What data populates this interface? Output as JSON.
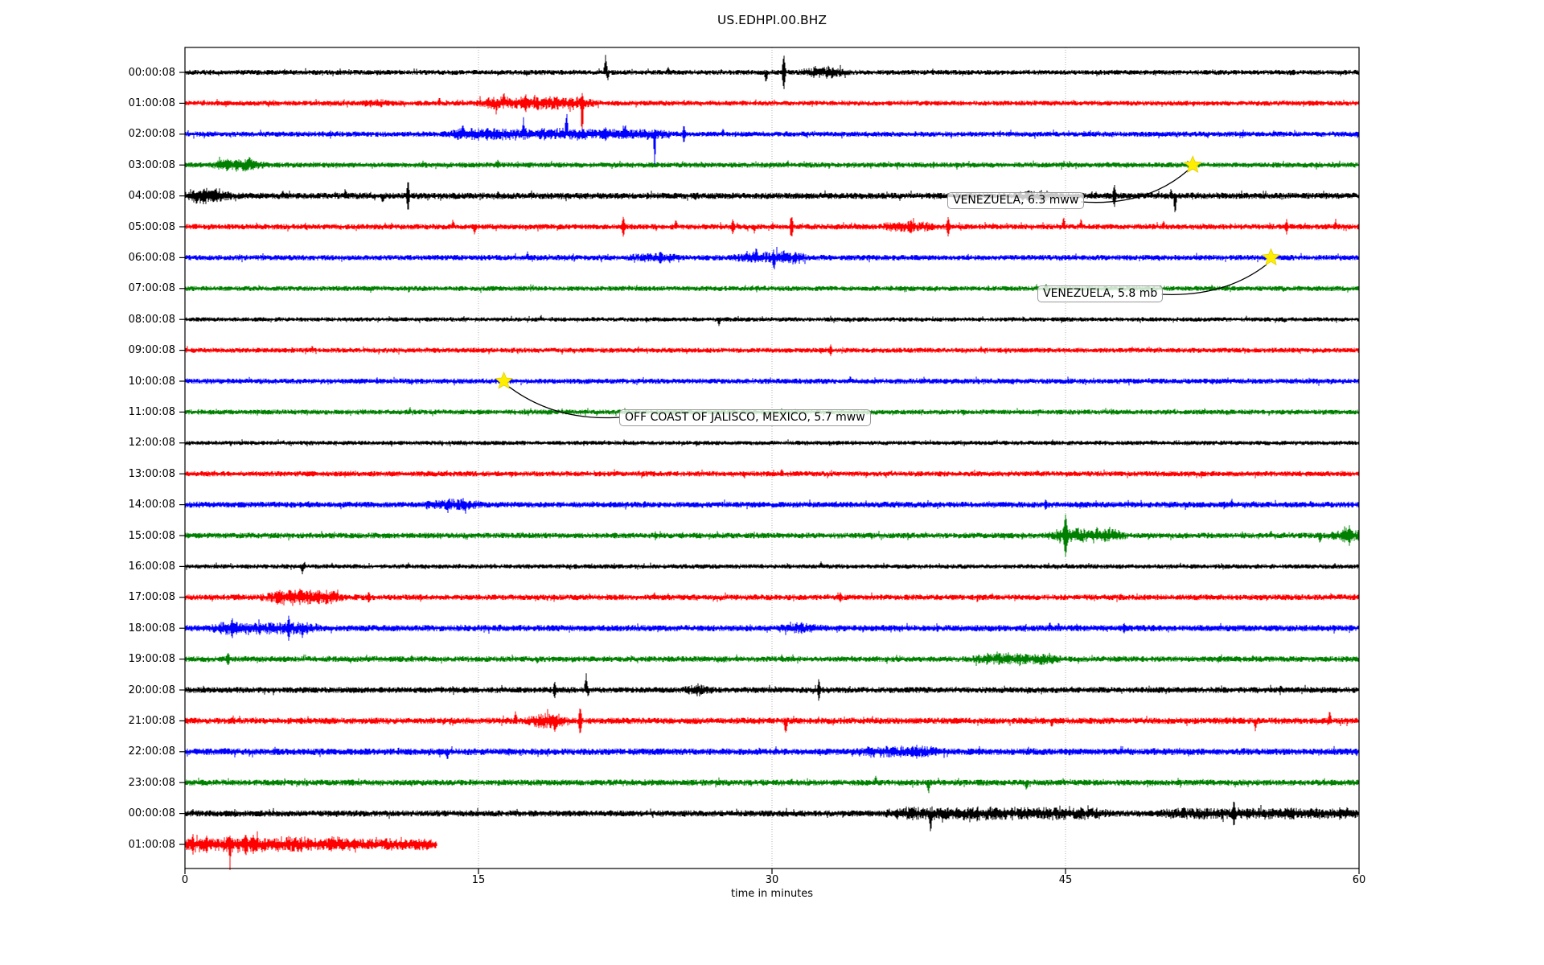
{
  "figure": {
    "title": "US.EDHPI.00.BHZ",
    "xlabel": "time in minutes"
  },
  "colors": {
    "grid": "#b0b0b0",
    "axis": "#000000",
    "star_fill": "#ffee00",
    "annotation_border": "#999999",
    "trace_cycle": [
      "#000000",
      "#ff0000",
      "#0000ff",
      "#008000"
    ]
  },
  "chart_data": {
    "type": "line",
    "subtype": "helicorder-seismogram-day-plot",
    "title": "US.EDHPI.00.BHZ",
    "xlabel": "time in minutes",
    "x_range_minutes": [
      0,
      60
    ],
    "x_ticks": [
      0,
      15,
      30,
      45,
      60
    ],
    "gridline_minutes": [
      15,
      30,
      45
    ],
    "minutes_per_row": 60,
    "row_order": "top-to-bottom",
    "rows": [
      {
        "label": "00:00:08",
        "color": "#000000",
        "base": 3.2,
        "end": 60,
        "bursts": [
          [
            31.8,
            33.6,
            6
          ]
        ],
        "spikes": [
          [
            21.5,
            22,
            1
          ],
          [
            21.6,
            10,
            -1
          ],
          [
            24.7,
            8,
            1
          ],
          [
            29.7,
            13,
            -1
          ],
          [
            30.6,
            24,
            0
          ]
        ]
      },
      {
        "label": "01:00:08",
        "color": "#ff0000",
        "base": 3.2,
        "end": 60,
        "bursts": [
          [
            9.3,
            10.4,
            3
          ],
          [
            15.2,
            20.8,
            6
          ]
        ],
        "spikes": [
          [
            13.0,
            8,
            1
          ],
          [
            16.3,
            16,
            1
          ],
          [
            17.4,
            12,
            0
          ],
          [
            18.6,
            8,
            1
          ],
          [
            20.3,
            46,
            -1,
            0.1
          ],
          [
            20.3,
            14,
            1
          ]
        ]
      },
      {
        "label": "02:00:08",
        "color": "#0000ff",
        "base": 3.4,
        "end": 60,
        "bursts": [
          [
            13.5,
            24.5,
            5
          ]
        ],
        "spikes": [
          [
            14.2,
            12,
            1
          ],
          [
            17.3,
            20,
            1
          ],
          [
            19.5,
            26,
            1
          ],
          [
            21.5,
            10,
            0
          ],
          [
            22.5,
            12,
            1
          ],
          [
            24.0,
            36,
            -1,
            0.1
          ],
          [
            25.5,
            10,
            0
          ],
          [
            27.5,
            8,
            1
          ]
        ]
      },
      {
        "label": "03:00:08",
        "color": "#008000",
        "base": 3.4,
        "end": 60,
        "bursts": [
          [
            1.7,
            3.7,
            7
          ]
        ],
        "spikes": [
          [
            2.1,
            8,
            1
          ],
          [
            3.3,
            12,
            1
          ],
          [
            16.0,
            6,
            1
          ],
          [
            30.8,
            6,
            1
          ]
        ]
      },
      {
        "label": "04:00:08",
        "color": "#000000",
        "base": 4.0,
        "end": 60,
        "bursts": [
          [
            0,
            2.1,
            7
          ],
          [
            42.8,
            44.2,
            4
          ]
        ],
        "spikes": [
          [
            0.6,
            11,
            -1
          ],
          [
            0.95,
            10,
            1
          ],
          [
            1.5,
            9,
            -1
          ],
          [
            5.0,
            7,
            1
          ],
          [
            8.2,
            9,
            1
          ],
          [
            10.1,
            10,
            -1
          ],
          [
            11.4,
            19,
            0
          ],
          [
            16.0,
            6,
            1
          ],
          [
            47.5,
            14,
            0
          ],
          [
            50.6,
            25,
            -1,
            0.1
          ],
          [
            50.4,
            9,
            1
          ]
        ]
      },
      {
        "label": "05:00:08",
        "color": "#ff0000",
        "base": 3.5,
        "end": 60,
        "bursts": [
          [
            35.8,
            38.2,
            4
          ]
        ],
        "spikes": [
          [
            13.7,
            9,
            1
          ],
          [
            14.8,
            10,
            -1
          ],
          [
            22.4,
            12,
            0
          ],
          [
            25.1,
            10,
            1
          ],
          [
            28.0,
            10,
            0
          ],
          [
            29.1,
            8,
            -1
          ],
          [
            31.0,
            16,
            0
          ],
          [
            37.1,
            10,
            0
          ],
          [
            39.0,
            12,
            0
          ],
          [
            44.9,
            12,
            1
          ],
          [
            45.8,
            10,
            1
          ],
          [
            50.0,
            8,
            1
          ],
          [
            56.3,
            10,
            0
          ],
          [
            58.8,
            9,
            1
          ]
        ]
      },
      {
        "label": "06:00:08",
        "color": "#0000ff",
        "base": 3.5,
        "end": 60,
        "bursts": [
          [
            23.0,
            25.0,
            3
          ],
          [
            28.4,
            31.6,
            6
          ]
        ],
        "spikes": [
          [
            17.5,
            8,
            1
          ],
          [
            24.3,
            10,
            0
          ],
          [
            29.2,
            12,
            1
          ],
          [
            30.1,
            16,
            -1
          ],
          [
            30.6,
            10,
            1
          ],
          [
            31.2,
            9,
            0
          ]
        ]
      },
      {
        "label": "07:00:08",
        "color": "#008000",
        "base": 3.2,
        "end": 60,
        "bursts": [],
        "spikes": [
          [
            44.0,
            6,
            1
          ]
        ]
      },
      {
        "label": "08:00:08",
        "color": "#000000",
        "base": 2.8,
        "end": 60,
        "bursts": [],
        "spikes": [
          [
            18.2,
            5,
            1
          ],
          [
            27.3,
            8,
            -1
          ]
        ]
      },
      {
        "label": "09:00:08",
        "color": "#ff0000",
        "base": 3.2,
        "end": 60,
        "bursts": [],
        "spikes": [
          [
            6.5,
            6,
            1
          ],
          [
            33.0,
            6,
            0
          ]
        ]
      },
      {
        "label": "10:00:08",
        "color": "#0000ff",
        "base": 3.4,
        "end": 60,
        "bursts": [],
        "spikes": [
          [
            34.0,
            6,
            1
          ]
        ]
      },
      {
        "label": "11:00:08",
        "color": "#008000",
        "base": 3.2,
        "end": 60,
        "bursts": [],
        "spikes": [
          [
            11.5,
            6,
            1
          ]
        ]
      },
      {
        "label": "12:00:08",
        "color": "#000000",
        "base": 2.8,
        "end": 60,
        "bursts": [],
        "spikes": []
      },
      {
        "label": "13:00:08",
        "color": "#ff0000",
        "base": 3.4,
        "end": 60,
        "bursts": [],
        "spikes": [
          [
            30.5,
            6,
            1
          ]
        ]
      },
      {
        "label": "14:00:08",
        "color": "#0000ff",
        "base": 3.8,
        "end": 60,
        "bursts": [
          [
            12.5,
            14.8,
            5
          ]
        ],
        "spikes": [
          [
            13.5,
            8,
            1
          ],
          [
            44.0,
            7,
            0
          ],
          [
            53.5,
            7,
            1
          ]
        ]
      },
      {
        "label": "15:00:08",
        "color": "#008000",
        "base": 3.6,
        "end": 60,
        "bursts": [
          [
            44.3,
            47.8,
            7
          ],
          [
            58.9,
            60,
            7
          ]
        ],
        "spikes": [
          [
            45.0,
            24,
            0,
            0.15
          ],
          [
            46.6,
            13,
            1
          ],
          [
            47.4,
            10,
            1
          ],
          [
            55.5,
            6,
            1
          ],
          [
            58.0,
            11,
            -1
          ],
          [
            59.5,
            12,
            0
          ]
        ]
      },
      {
        "label": "16:00:08",
        "color": "#000000",
        "base": 2.9,
        "end": 60,
        "bursts": [],
        "spikes": [
          [
            6.0,
            11,
            -1
          ],
          [
            6.1,
            6,
            1
          ],
          [
            32.5,
            6,
            1
          ]
        ]
      },
      {
        "label": "17:00:08",
        "color": "#ff0000",
        "base": 3.6,
        "end": 60,
        "bursts": [
          [
            4.2,
            7.8,
            7
          ]
        ],
        "spikes": [
          [
            4.8,
            9,
            0
          ],
          [
            5.9,
            12,
            1
          ],
          [
            7.6,
            10,
            1
          ],
          [
            9.4,
            8,
            0
          ],
          [
            24.0,
            6,
            1
          ],
          [
            33.5,
            7,
            0
          ]
        ]
      },
      {
        "label": "18:00:08",
        "color": "#0000ff",
        "base": 4.0,
        "end": 60,
        "bursts": [
          [
            1.5,
            6.5,
            5
          ],
          [
            30.8,
            32.2,
            4
          ]
        ],
        "spikes": [
          [
            2.4,
            13,
            0
          ],
          [
            5.3,
            15,
            0
          ],
          [
            6.0,
            11,
            -1
          ],
          [
            31.5,
            8,
            1
          ],
          [
            44.2,
            7,
            1
          ],
          [
            48.0,
            7,
            0
          ]
        ]
      },
      {
        "label": "19:00:08",
        "color": "#008000",
        "base": 3.6,
        "end": 60,
        "bursts": [
          [
            40.5,
            44.5,
            5
          ]
        ],
        "spikes": [
          [
            2.2,
            10,
            0
          ],
          [
            30.5,
            6,
            1
          ],
          [
            41.5,
            9,
            1
          ],
          [
            43.0,
            8,
            1
          ]
        ]
      },
      {
        "label": "20:00:08",
        "color": "#000000",
        "base": 3.8,
        "end": 60,
        "bursts": [
          [
            25.8,
            26.6,
            5
          ]
        ],
        "spikes": [
          [
            18.9,
            11,
            0
          ],
          [
            20.5,
            19,
            1
          ],
          [
            20.6,
            8,
            -1
          ],
          [
            32.4,
            13,
            0
          ],
          [
            56.0,
            7,
            1
          ]
        ]
      },
      {
        "label": "21:00:08",
        "color": "#ff0000",
        "base": 4.0,
        "end": 60,
        "bursts": [
          [
            17.7,
            19.4,
            7
          ]
        ],
        "spikes": [
          [
            16.9,
            11,
            1
          ],
          [
            18.9,
            15,
            -1
          ],
          [
            20.2,
            20,
            0
          ],
          [
            30.7,
            18,
            -1
          ],
          [
            44.3,
            9,
            -1
          ],
          [
            54.7,
            11,
            -1
          ],
          [
            58.5,
            12,
            1
          ]
        ]
      },
      {
        "label": "22:00:08",
        "color": "#0000ff",
        "base": 4.2,
        "end": 60,
        "bursts": [
          [
            34.5,
            38.5,
            4
          ]
        ],
        "spikes": [
          [
            13.4,
            11,
            -1
          ],
          [
            30.2,
            7,
            1
          ],
          [
            37.4,
            8,
            0
          ],
          [
            40.6,
            7,
            1
          ],
          [
            49.5,
            6,
            1
          ]
        ]
      },
      {
        "label": "23:00:08",
        "color": "#008000",
        "base": 3.8,
        "end": 60,
        "bursts": [],
        "spikes": [
          [
            31.0,
            6,
            1
          ],
          [
            35.3,
            8,
            1
          ],
          [
            38.0,
            13,
            -1
          ],
          [
            43.0,
            11,
            -1
          ]
        ]
      },
      {
        "label": "00:00:08",
        "color": "#000000",
        "base": 4.0,
        "end": 60,
        "bursts": [
          [
            36.0,
            47.0,
            5
          ],
          [
            50.0,
            60,
            4
          ]
        ],
        "spikes": [
          [
            38.1,
            24,
            -1,
            0.12
          ],
          [
            40.5,
            10,
            -1
          ],
          [
            41.0,
            8,
            -1
          ],
          [
            53.6,
            16,
            0
          ],
          [
            59.4,
            9,
            1
          ]
        ]
      },
      {
        "label": "01:00:08",
        "color": "#ff0000",
        "base": 4.5,
        "end": 12.87,
        "bursts": [
          [
            0,
            8.2,
            6
          ],
          [
            8.2,
            12.87,
            3.5
          ]
        ],
        "spikes": [
          [
            0.4,
            12,
            0
          ],
          [
            1.1,
            14,
            0
          ],
          [
            2.3,
            28,
            -1,
            0.1
          ],
          [
            2.3,
            12,
            1
          ],
          [
            3.1,
            16,
            0
          ],
          [
            3.5,
            12,
            0
          ],
          [
            5.6,
            9,
            1
          ],
          [
            7.6,
            8,
            1
          ]
        ]
      }
    ],
    "events": [
      {
        "label": "VENEZUELA, 6.3 mww",
        "row_index": 3,
        "row_label": "03:00:08",
        "minute": 51.5,
        "marker": "yellow-star"
      },
      {
        "label": "VENEZUELA, 5.8 mb",
        "row_index": 6,
        "row_label": "06:00:08",
        "minute": 55.5,
        "marker": "yellow-star"
      },
      {
        "label": "OFF COAST OF JALISCO, MEXICO, 5.7 mww",
        "row_index": 10,
        "row_label": "10:00:08",
        "minute": 16.3,
        "marker": "yellow-star"
      }
    ]
  }
}
